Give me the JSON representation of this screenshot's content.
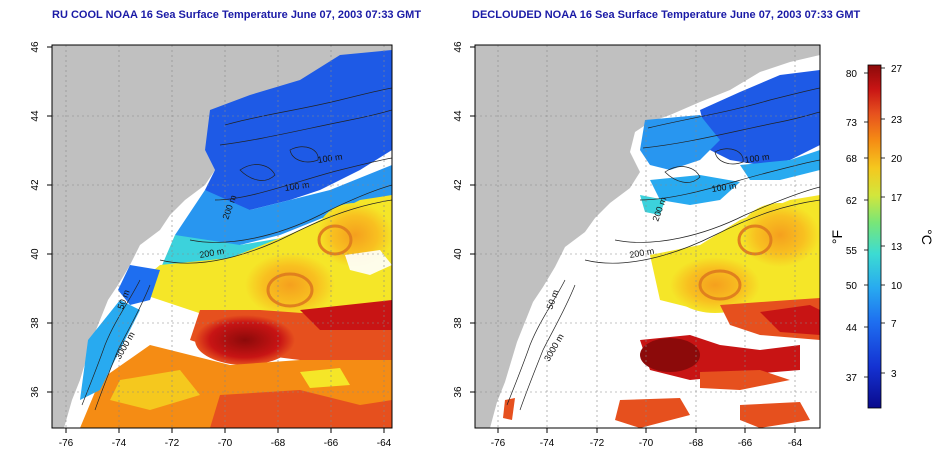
{
  "left_panel": {
    "title": "RU COOL NOAA 16 Sea Surface Temperature June 07, 2003 07:33 GMT",
    "x_ticks": [
      "-76",
      "-74",
      "-72",
      "-70",
      "-68",
      "-66",
      "-64"
    ],
    "y_ticks": [
      "36",
      "38",
      "40",
      "42",
      "44",
      "46"
    ],
    "contour_labels": [
      "100 m",
      "100 m",
      "200 m",
      "200 m",
      "50 m",
      "3000 m"
    ]
  },
  "right_panel": {
    "title": "DECLOUDED NOAA 16 Sea Surface Temperature June 07, 2003 07:33 GMT",
    "x_ticks": [
      "-76",
      "-74",
      "-72",
      "-70",
      "-68",
      "-66",
      "-64"
    ],
    "y_ticks": [
      "36",
      "38",
      "40",
      "42",
      "44",
      "46"
    ],
    "contour_labels": [
      "100 m",
      "100 m",
      "200 m",
      "200 m",
      "50 m",
      "3000 m"
    ]
  },
  "colorbar": {
    "f_label": "°F",
    "c_label": "°C",
    "f_ticks": [
      "80",
      "73",
      "68",
      "62",
      "55",
      "50",
      "44",
      "37"
    ],
    "c_ticks": [
      "27",
      "23",
      "20",
      "17",
      "13",
      "10",
      "7",
      "3"
    ],
    "colors": [
      "#0a0a8c",
      "#1432d2",
      "#1e6ef0",
      "#28aaf0",
      "#3cdcd2",
      "#78e678",
      "#d2e63c",
      "#f5c81e",
      "#f58c14",
      "#e6501e",
      "#c81414",
      "#8c0a0a"
    ]
  }
}
